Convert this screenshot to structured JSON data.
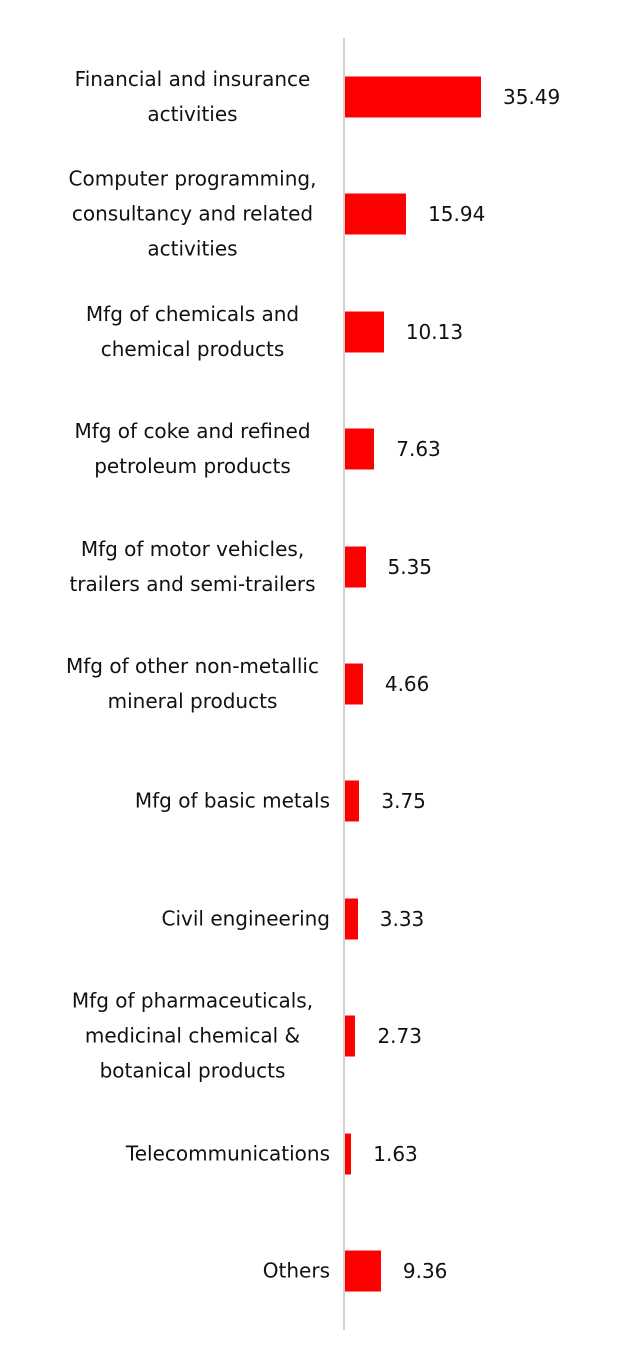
{
  "chart_data": {
    "type": "bar",
    "orientation": "horizontal",
    "categories": [
      "Financial and insurance activities",
      "Computer programming, consultancy and related activities",
      "Mfg of chemicals and chemical products",
      "Mfg of coke and refined petroleum products",
      "Mfg of motor vehicles, trailers and semi-trailers",
      "Mfg of other non-metallic mineral products",
      "Mfg of basic metals",
      "Civil engineering",
      "Mfg of pharmaceuticals, medicinal chemical & botanical products",
      "Telecommunications",
      "Others"
    ],
    "values": [
      35.49,
      15.94,
      10.13,
      7.63,
      5.35,
      4.66,
      3.75,
      3.33,
      2.73,
      1.63,
      9.36
    ],
    "color": "#ff0000"
  }
}
